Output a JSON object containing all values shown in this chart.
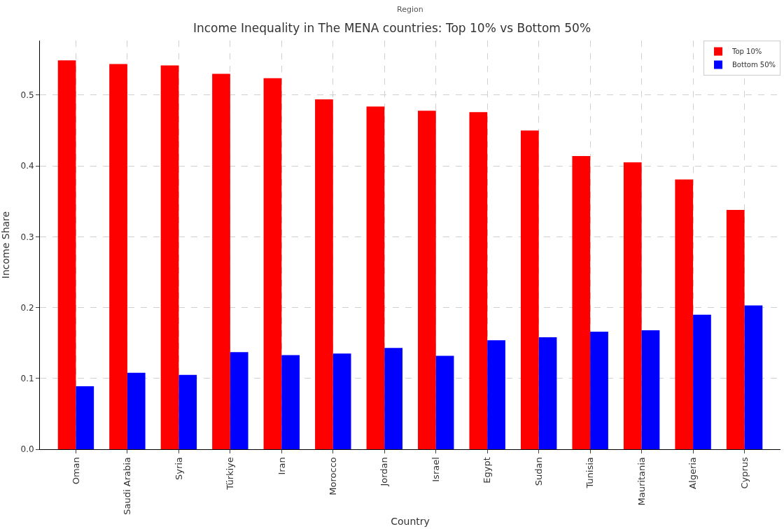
{
  "chart_data": {
    "type": "bar",
    "title": "Income Inequality in The MENA countries: Top 10% vs Bottom 50%",
    "subtitle": "Region",
    "xlabel": "Country",
    "ylabel": "Income Share",
    "categories": [
      "Oman",
      "Saudi Arabia",
      "Syria",
      "Türkiye",
      "Iran",
      "Morocco",
      "Jordan",
      "Israel",
      "Egypt",
      "Sudan",
      "Tunisia",
      "Mauritania",
      "Algeria",
      "Cyprus"
    ],
    "series": [
      {
        "name": "Top 10%",
        "color": "#ff0000",
        "values": [
          0.549,
          0.544,
          0.542,
          0.53,
          0.524,
          0.494,
          0.484,
          0.478,
          0.476,
          0.45,
          0.414,
          0.405,
          0.381,
          0.338
        ]
      },
      {
        "name": "Bottom 50%",
        "color": "#0000ff",
        "values": [
          0.089,
          0.108,
          0.105,
          0.137,
          0.133,
          0.135,
          0.143,
          0.132,
          0.154,
          0.158,
          0.166,
          0.168,
          0.19,
          0.203
        ]
      }
    ],
    "ylim": [
      0,
      0.577
    ],
    "yticks": [
      {
        "value": 0,
        "label": "0.0"
      },
      {
        "value": 0.1,
        "label": "0.1"
      },
      {
        "value": 0.2,
        "label": "0.2"
      },
      {
        "value": 0.3,
        "label": "0.3"
      },
      {
        "value": 0.4,
        "label": "0.4"
      },
      {
        "value": 0.5,
        "label": "0.5"
      }
    ],
    "grid": true,
    "legend": "top right"
  }
}
